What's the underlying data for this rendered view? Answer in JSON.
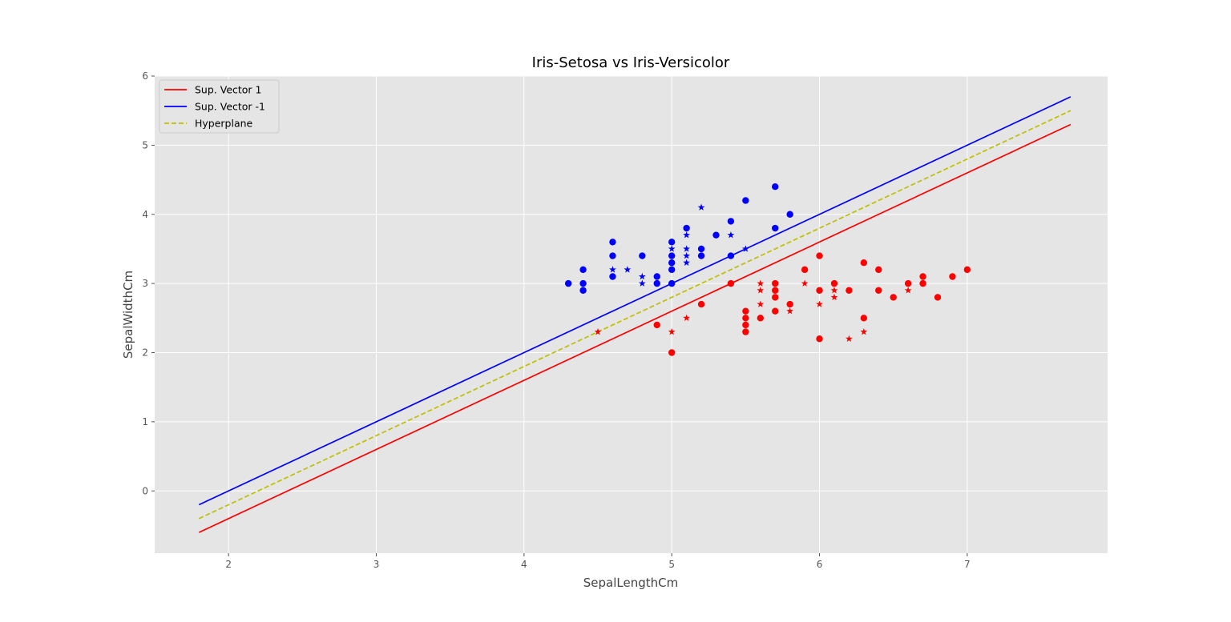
{
  "chart_data": {
    "type": "scatter",
    "title": "Iris-Setosa vs Iris-Versicolor",
    "xlabel": "SepalLengthCm",
    "ylabel": "SepalWidthCm",
    "xlim": [
      1.5,
      7.95
    ],
    "ylim": [
      -0.9,
      6.0
    ],
    "xticks": [
      2,
      3,
      4,
      5,
      6,
      7
    ],
    "yticks": [
      0,
      1,
      2,
      3,
      4,
      5,
      6
    ],
    "grid": true,
    "legend_position": "top-left",
    "lines": [
      {
        "name": "Sup. Vector 1",
        "color": "#ff0000",
        "style": "solid",
        "x": [
          1.8,
          7.7
        ],
        "y": [
          -0.6,
          5.3
        ]
      },
      {
        "name": "Sup. Vector -1",
        "color": "#0000ff",
        "style": "solid",
        "x": [
          1.8,
          7.7
        ],
        "y": [
          -0.2,
          5.7
        ]
      },
      {
        "name": "Hyperplane",
        "color": "#bfbf00",
        "style": "dashed",
        "x": [
          1.8,
          7.7
        ],
        "y": [
          -0.4,
          5.5
        ]
      }
    ],
    "point_groups": [
      {
        "color": "#0000ff",
        "marker": "circle",
        "points": [
          [
            4.3,
            3.0
          ],
          [
            4.4,
            3.2
          ],
          [
            4.4,
            3.0
          ],
          [
            4.4,
            2.9
          ],
          [
            4.6,
            3.6
          ],
          [
            4.6,
            3.4
          ],
          [
            4.6,
            3.1
          ],
          [
            4.8,
            3.4
          ],
          [
            4.9,
            3.1
          ],
          [
            4.9,
            3.0
          ],
          [
            5.0,
            3.6
          ],
          [
            5.0,
            3.4
          ],
          [
            5.0,
            3.3
          ],
          [
            5.0,
            3.2
          ],
          [
            5.0,
            3.0
          ],
          [
            5.1,
            3.8
          ],
          [
            5.2,
            3.5
          ],
          [
            5.2,
            3.4
          ],
          [
            5.3,
            3.7
          ],
          [
            5.4,
            3.9
          ],
          [
            5.4,
            3.4
          ],
          [
            5.5,
            4.2
          ],
          [
            5.7,
            4.4
          ],
          [
            5.7,
            3.8
          ],
          [
            5.8,
            4.0
          ]
        ]
      },
      {
        "color": "#0000ff",
        "marker": "star",
        "points": [
          [
            4.6,
            3.2
          ],
          [
            4.7,
            3.2
          ],
          [
            4.8,
            3.1
          ],
          [
            4.8,
            3.0
          ],
          [
            5.0,
            3.5
          ],
          [
            5.1,
            3.7
          ],
          [
            5.1,
            3.5
          ],
          [
            5.1,
            3.4
          ],
          [
            5.1,
            3.3
          ],
          [
            5.2,
            4.1
          ],
          [
            5.4,
            3.7
          ],
          [
            5.5,
            3.5
          ]
        ]
      },
      {
        "color": "#ff0000",
        "marker": "circle",
        "points": [
          [
            4.9,
            2.4
          ],
          [
            5.0,
            2.0
          ],
          [
            5.2,
            2.7
          ],
          [
            5.4,
            3.0
          ],
          [
            5.5,
            2.6
          ],
          [
            5.5,
            2.5
          ],
          [
            5.5,
            2.4
          ],
          [
            5.5,
            2.3
          ],
          [
            5.6,
            2.5
          ],
          [
            5.7,
            3.0
          ],
          [
            5.7,
            2.9
          ],
          [
            5.7,
            2.8
          ],
          [
            5.7,
            2.6
          ],
          [
            5.8,
            2.7
          ],
          [
            5.9,
            3.2
          ],
          [
            6.0,
            3.4
          ],
          [
            6.0,
            2.9
          ],
          [
            6.0,
            2.2
          ],
          [
            6.1,
            3.0
          ],
          [
            6.2,
            2.9
          ],
          [
            6.3,
            3.3
          ],
          [
            6.3,
            2.5
          ],
          [
            6.4,
            3.2
          ],
          [
            6.4,
            2.9
          ],
          [
            6.5,
            2.8
          ],
          [
            6.6,
            3.0
          ],
          [
            6.7,
            3.1
          ],
          [
            6.7,
            3.0
          ],
          [
            6.8,
            2.8
          ],
          [
            6.9,
            3.1
          ],
          [
            7.0,
            3.2
          ]
        ]
      },
      {
        "color": "#ff0000",
        "marker": "star",
        "points": [
          [
            4.5,
            2.3
          ],
          [
            5.0,
            2.3
          ],
          [
            5.1,
            2.5
          ],
          [
            5.6,
            3.0
          ],
          [
            5.6,
            2.9
          ],
          [
            5.6,
            2.7
          ],
          [
            5.8,
            2.6
          ],
          [
            5.9,
            3.0
          ],
          [
            6.0,
            2.7
          ],
          [
            6.1,
            2.9
          ],
          [
            6.1,
            2.8
          ],
          [
            6.2,
            2.2
          ],
          [
            6.3,
            2.3
          ],
          [
            6.6,
            2.9
          ]
        ]
      }
    ]
  }
}
